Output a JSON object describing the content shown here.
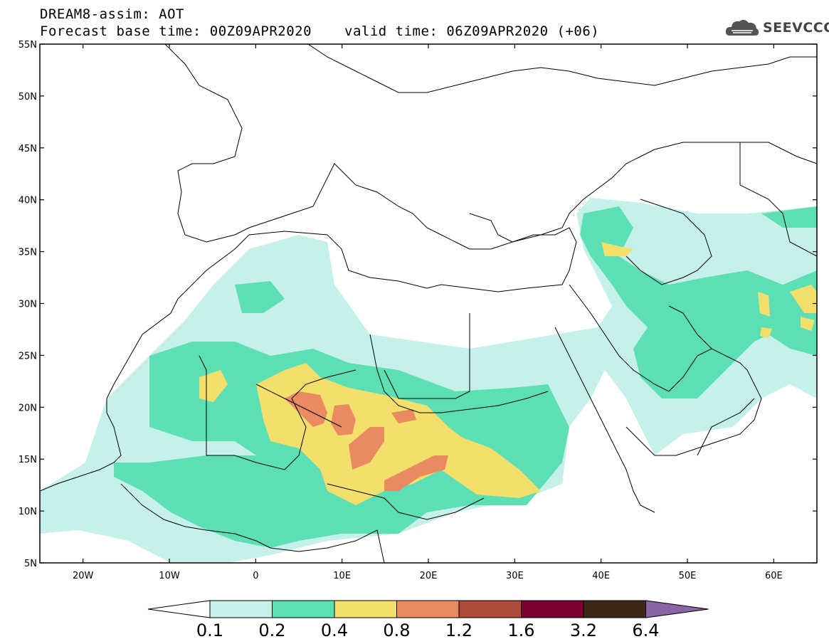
{
  "header": {
    "line1": "DREAM8-assim: AOT",
    "base_time": "Forecast base time: 00Z09APR2020",
    "valid_time": "valid time: 06Z09APR2020 (+06)"
  },
  "logo": {
    "text": "SEEVCCC",
    "icon": "cloud-icon"
  },
  "map": {
    "lat_ticks": [
      "55N",
      "50N",
      "45N",
      "40N",
      "35N",
      "30N",
      "25N",
      "20N",
      "15N",
      "10N",
      "5N"
    ],
    "lon_ticks": [
      "20W",
      "10W",
      "0",
      "10E",
      "20E",
      "30E",
      "40E",
      "50E",
      "60E"
    ],
    "lat_range": [
      5,
      55
    ],
    "lon_range": [
      -25,
      65
    ],
    "lat_values": [
      55,
      50,
      45,
      40,
      35,
      30,
      25,
      20,
      15,
      10,
      5
    ],
    "lon_values": [
      -20,
      -10,
      0,
      10,
      20,
      30,
      40,
      50,
      60
    ],
    "colors": {
      "land_line": "#000000",
      "background": "#ffffff"
    }
  },
  "colorbar": {
    "labels": [
      "0.1",
      "0.2",
      "0.4",
      "0.8",
      "1.2",
      "1.6",
      "3.2",
      "6.4"
    ],
    "colors": [
      "#ffffff",
      "#c6f1ea",
      "#5ddfb6",
      "#f3df6b",
      "#e98a61",
      "#ae4a3a",
      "#7a0030",
      "#3c2616",
      "#8a65a5"
    ]
  }
}
